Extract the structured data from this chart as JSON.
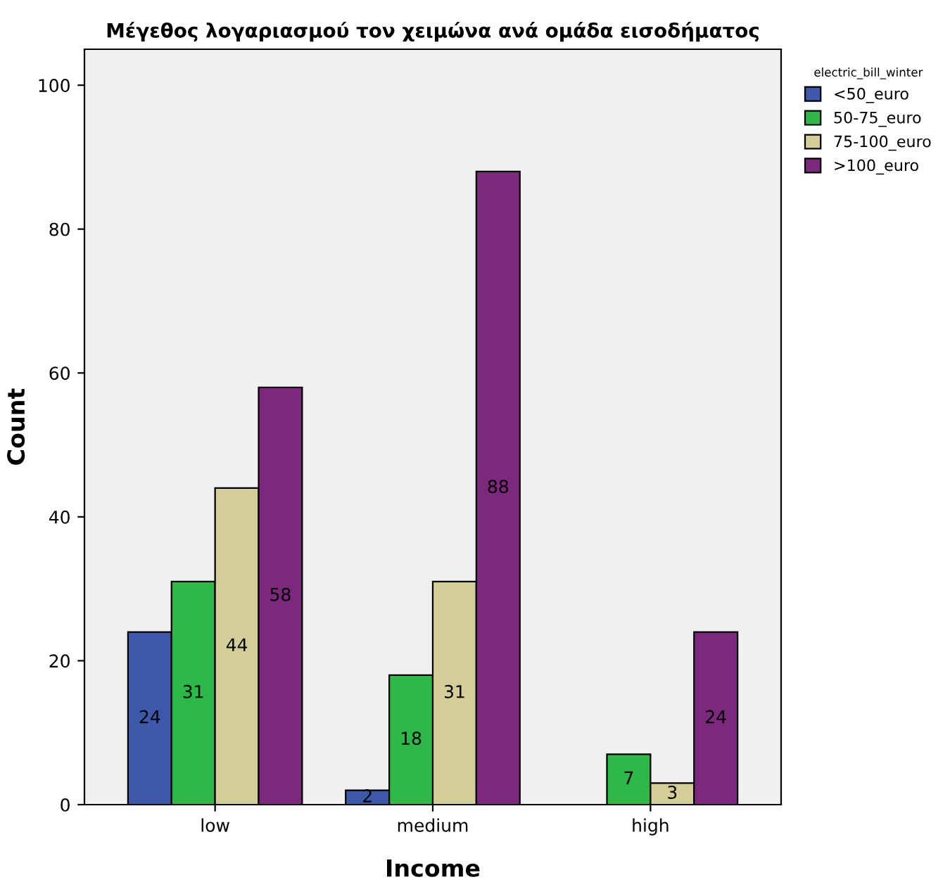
{
  "chart_data": {
    "type": "bar",
    "title": "Μέγεθος λογαριασμού τον χειμώνα ανά ομάδα εισοδήματος",
    "xlabel": "Income",
    "ylabel": "Count",
    "legend_title": "electric_bill_winter",
    "categories": [
      "low",
      "medium",
      "high"
    ],
    "series": [
      {
        "name": "<50_euro",
        "color": "#3e58ac",
        "values": [
          24,
          2,
          null
        ]
      },
      {
        "name": "50-75_euro",
        "color": "#2eb848",
        "values": [
          31,
          18,
          7
        ]
      },
      {
        "name": "75-100_euro",
        "color": "#d3ce97",
        "values": [
          44,
          31,
          3
        ]
      },
      {
        "name": ">100_euro",
        "color": "#7c287d",
        "values": [
          58,
          88,
          24
        ]
      }
    ],
    "ylim": [
      0,
      105
    ],
    "yticks": [
      0,
      20,
      40,
      60,
      80,
      100
    ],
    "grid": false,
    "legend": "top right",
    "data_labels": true
  }
}
